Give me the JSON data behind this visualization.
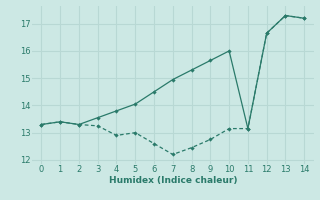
{
  "xlabel": "Humidex (Indice chaleur)",
  "line_dashed_x": [
    0,
    1,
    2,
    3,
    4,
    5,
    6,
    7,
    8,
    9,
    10,
    11,
    12,
    13,
    14
  ],
  "line_dashed_y": [
    13.3,
    13.4,
    13.3,
    13.25,
    12.9,
    13.0,
    12.6,
    12.2,
    12.45,
    12.75,
    13.15,
    13.15,
    16.65,
    17.3,
    17.2
  ],
  "line_solid_x": [
    0,
    1,
    2,
    3,
    4,
    5,
    6,
    7,
    8,
    9,
    10,
    11,
    12,
    13,
    14
  ],
  "line_solid_y": [
    13.3,
    13.4,
    13.3,
    13.55,
    13.8,
    14.05,
    14.5,
    14.95,
    15.3,
    15.65,
    16.0,
    13.15,
    16.65,
    17.3,
    17.2
  ],
  "line_color": "#2a7a6a",
  "bg_color": "#cce8e4",
  "grid_color": "#b8d8d4",
  "ylim": [
    11.85,
    17.65
  ],
  "xlim": [
    -0.5,
    14.5
  ],
  "yticks": [
    12,
    13,
    14,
    15,
    16,
    17
  ],
  "xticks": [
    0,
    1,
    2,
    3,
    4,
    5,
    6,
    7,
    8,
    9,
    10,
    11,
    12,
    13,
    14
  ]
}
